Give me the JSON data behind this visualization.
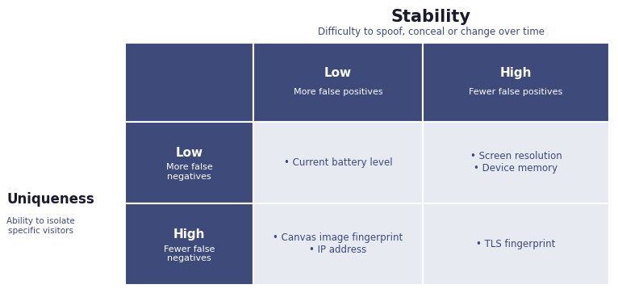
{
  "title": "Stability",
  "subtitle": "Difficulty to spoof, conceal or change over time",
  "y_axis_title": "Uniqueness",
  "y_axis_subtitle": "Ability to isolate\nspecific visitors",
  "header_bg": "#3d4a7a",
  "header_text_color": "#ffffff",
  "row_header_bg": "#3d4a7a",
  "row_header_text_color": "#ffffff",
  "cell_bg": "#e8eaf2",
  "cell_text_color": "#3d4a7a",
  "title_color": "#1a1a2e",
  "subtitle_color": "#3d4a7a",
  "col_headers": [
    {
      "main": "Low",
      "sub": "More false positives"
    },
    {
      "main": "High",
      "sub": "Fewer false positives"
    }
  ],
  "row_headers": [
    {
      "main": "Low",
      "sub": "More false\nnegatives"
    },
    {
      "main": "High",
      "sub": "Fewer false\nnegatives"
    }
  ],
  "cells": [
    [
      "• Current battery level",
      "• Screen resolution\n• Device memory"
    ],
    [
      "• Canvas image fingerprint\n• IP address",
      "• TLS fingerprint"
    ]
  ],
  "grid_color": "#ffffff",
  "fig_width": 7.66,
  "fig_height": 3.63,
  "dpi": 100
}
